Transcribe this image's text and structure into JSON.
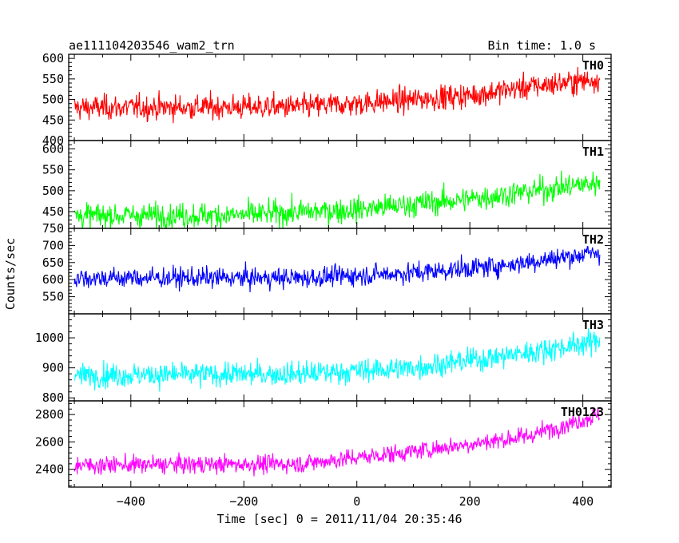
{
  "header": {
    "title": "ae111104203546_wam2_trn",
    "bin_time": "Bin time: 1.0 s"
  },
  "axes": {
    "ylabel": "Counts/sec",
    "xlabel": "Time [sec] 0 = 2011/11/04 20:35:46",
    "x_ticks": [
      "−400",
      "−200",
      "0",
      "200",
      "400"
    ],
    "x_tick_values": [
      -400,
      -200,
      0,
      200,
      400
    ]
  },
  "chart_data": {
    "type": "line",
    "x_range": [
      -510,
      450
    ],
    "x_start": -500,
    "x_end": 430,
    "bin": 1.0,
    "grid": false,
    "panels": [
      {
        "name": "TH0",
        "color": "#ff0000",
        "ylim": [
          400,
          610
        ],
        "y_ticks": [
          400,
          450,
          500,
          550,
          600
        ],
        "trend": [
          [
            -500,
            480
          ],
          [
            -100,
            482
          ],
          [
            0,
            490
          ],
          [
            200,
            510
          ],
          [
            300,
            530
          ],
          [
            430,
            550
          ]
        ],
        "noise": 25
      },
      {
        "name": "TH1",
        "color": "#00ff00",
        "ylim": [
          410,
          620
        ],
        "y_ticks": [
          450,
          500,
          550,
          600
        ],
        "trend": [
          [
            -500,
            440
          ],
          [
            -200,
            442
          ],
          [
            0,
            455
          ],
          [
            200,
            480
          ],
          [
            430,
            520
          ]
        ],
        "noise": 25
      },
      {
        "name": "TH2",
        "color": "#0000ff",
        "ylim": [
          500,
          750
        ],
        "y_ticks": [
          550,
          600,
          650,
          700,
          750
        ],
        "trend": [
          [
            -500,
            605
          ],
          [
            -100,
            605
          ],
          [
            100,
            620
          ],
          [
            250,
            640
          ],
          [
            430,
            680
          ]
        ],
        "noise": 25
      },
      {
        "name": "TH3",
        "color": "#00ffff",
        "ylim": [
          790,
          1080
        ],
        "y_ticks": [
          800,
          900,
          1000
        ],
        "trend": [
          [
            -500,
            875
          ],
          [
            -100,
            880
          ],
          [
            100,
            900
          ],
          [
            300,
            950
          ],
          [
            430,
            990
          ]
        ],
        "noise": 33
      },
      {
        "name": "TH0123",
        "color": "#ff00ff",
        "ylim": [
          2270,
          2900
        ],
        "y_ticks": [
          2400,
          2600,
          2800
        ],
        "trend": [
          [
            -500,
            2430
          ],
          [
            -100,
            2440
          ],
          [
            100,
            2530
          ],
          [
            300,
            2640
          ],
          [
            430,
            2800
          ]
        ],
        "noise": 55
      }
    ]
  }
}
